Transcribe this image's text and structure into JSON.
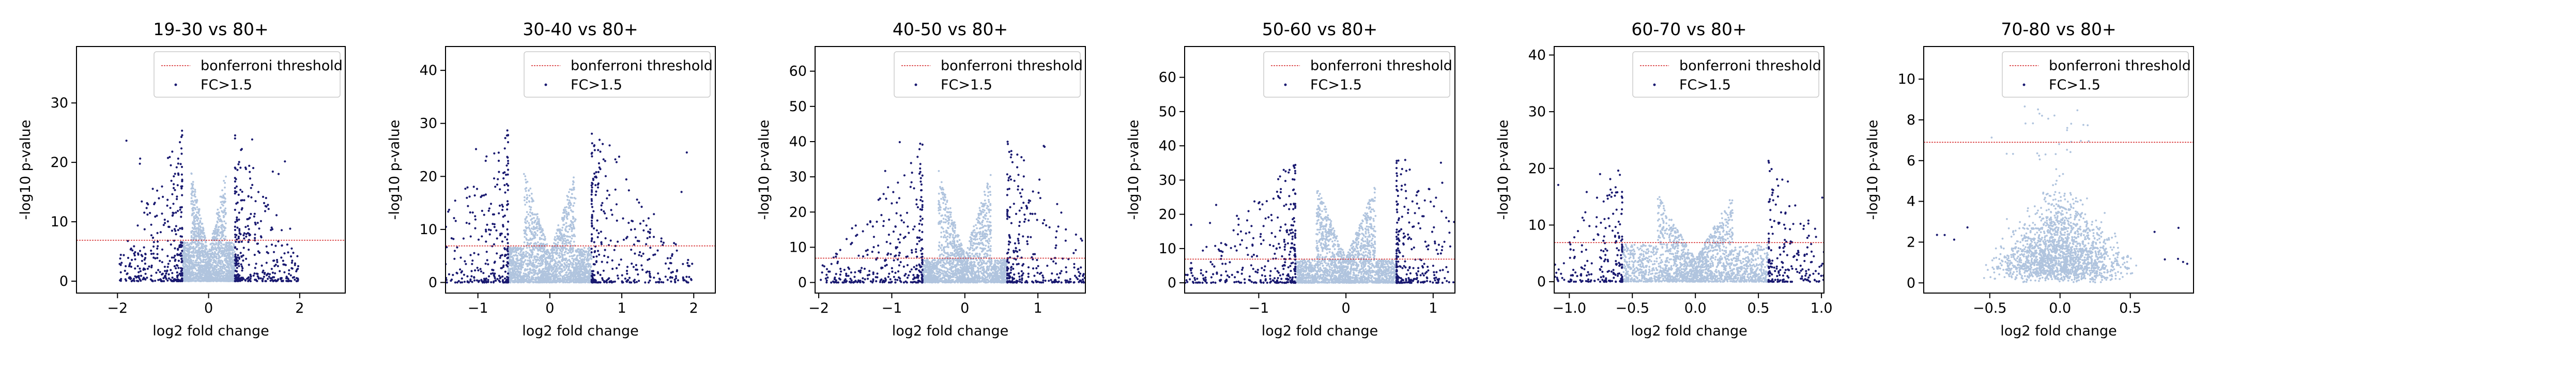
{
  "colors": {
    "points_bg": "#b0c4de",
    "points_fc": "#191970",
    "threshold": "#d62728",
    "axis": "#000000"
  },
  "chart_data": [
    {
      "type": "scatter",
      "title": "19-30 vs 80+",
      "xlabel": "log2 fold change",
      "ylabel": "-log10 p-value",
      "xlim": [
        -2.9,
        3.0
      ],
      "ylim": [
        -2,
        39.5
      ],
      "xticks": [
        -2,
        0,
        2
      ],
      "yticks": [
        0,
        10,
        20,
        30
      ],
      "threshold": 6.9,
      "fc_cut": 0.58,
      "inner_width": 0.38,
      "max_y": 24,
      "legend": {
        "threshold_label": "bonferroni threshold",
        "points_label": "FC>1.5",
        "placement": "upper right"
      },
      "series": [
        {
          "name": "bonferroni threshold",
          "kind": "hline",
          "y": 6.9
        },
        {
          "name": "FC>1.5",
          "kind": "points"
        }
      ]
    },
    {
      "type": "scatter",
      "title": "30-40 vs 80+",
      "xlabel": "log2 fold change",
      "ylabel": "-log10 p-value",
      "xlim": [
        -1.45,
        2.3
      ],
      "ylim": [
        -2,
        44.5
      ],
      "xticks": [
        -1,
        0,
        1,
        2
      ],
      "yticks": [
        0,
        10,
        20,
        30,
        40
      ],
      "threshold": 6.9,
      "fc_cut": 0.58,
      "inner_width": 0.36,
      "max_y": 28,
      "legend": {
        "threshold_label": "bonferroni threshold",
        "points_label": "FC>1.5",
        "placement": "upper right"
      },
      "series": [
        {
          "name": "bonferroni threshold",
          "kind": "hline",
          "y": 6.9
        },
        {
          "name": "FC>1.5",
          "kind": "points"
        }
      ]
    },
    {
      "type": "scatter",
      "title": "40-50 vs 80+",
      "xlabel": "log2 fold change",
      "ylabel": "-log10 p-value",
      "xlim": [
        -2.05,
        1.65
      ],
      "ylim": [
        -3,
        67
      ],
      "xticks": [
        -2,
        -1,
        0,
        1
      ],
      "yticks": [
        0,
        10,
        20,
        30,
        40,
        50,
        60
      ],
      "threshold": 6.9,
      "fc_cut": 0.58,
      "inner_width": 0.36,
      "max_y": 41,
      "legend": {
        "threshold_label": "bonferroni threshold",
        "points_label": "FC>1.5",
        "placement": "upper right"
      },
      "series": [
        {
          "name": "bonferroni threshold",
          "kind": "hline",
          "y": 6.9
        },
        {
          "name": "FC>1.5",
          "kind": "points"
        }
      ]
    },
    {
      "type": "scatter",
      "title": "50-60 vs 80+",
      "xlabel": "log2 fold change",
      "ylabel": "-log10 p-value",
      "xlim": [
        -1.85,
        1.25
      ],
      "ylim": [
        -3,
        69
      ],
      "xticks": [
        -1,
        0,
        1
      ],
      "yticks": [
        0,
        10,
        20,
        30,
        40,
        50,
        60
      ],
      "threshold": 6.9,
      "fc_cut": 0.58,
      "inner_width": 0.34,
      "max_y": 37,
      "legend": {
        "threshold_label": "bonferroni threshold",
        "points_label": "FC>1.5",
        "placement": "upper right"
      },
      "series": [
        {
          "name": "bonferroni threshold",
          "kind": "hline",
          "y": 6.9
        },
        {
          "name": "FC>1.5",
          "kind": "points"
        }
      ]
    },
    {
      "type": "scatter",
      "title": "60-70 vs 80+",
      "xlabel": "log2 fold change",
      "ylabel": "-log10 p-value",
      "xlim": [
        -1.12,
        1.02
      ],
      "ylim": [
        -2,
        41.5
      ],
      "xticks": [
        -1.0,
        -0.5,
        0.0,
        0.5,
        1.0
      ],
      "yticks": [
        0,
        10,
        20,
        30,
        40
      ],
      "threshold": 6.9,
      "fc_cut": 0.58,
      "inner_width": 0.3,
      "max_y": 20,
      "legend": {
        "threshold_label": "bonferroni threshold",
        "points_label": "FC>1.5",
        "placement": "upper right"
      },
      "series": [
        {
          "name": "bonferroni threshold",
          "kind": "hline",
          "y": 6.9
        },
        {
          "name": "FC>1.5",
          "kind": "points"
        }
      ]
    },
    {
      "type": "scatter",
      "title": "70-80 vs 80+",
      "xlabel": "log2 fold change",
      "ylabel": "-log10 p-value",
      "xlim": [
        -0.97,
        0.95
      ],
      "ylim": [
        -0.5,
        11.6
      ],
      "xticks": [
        -0.5,
        0.0,
        0.5
      ],
      "yticks": [
        0,
        2,
        4,
        6,
        8,
        10
      ],
      "threshold": 6.9,
      "fc_cut": 0.58,
      "inner_width": 0.32,
      "max_y": 8.7,
      "legend": {
        "threshold_label": "bonferroni threshold",
        "points_label": "FC>1.5",
        "placement": "upper right"
      },
      "series": [
        {
          "name": "bonferroni threshold",
          "kind": "hline",
          "y": 6.9
        },
        {
          "name": "FC>1.5",
          "kind": "points"
        }
      ]
    }
  ]
}
